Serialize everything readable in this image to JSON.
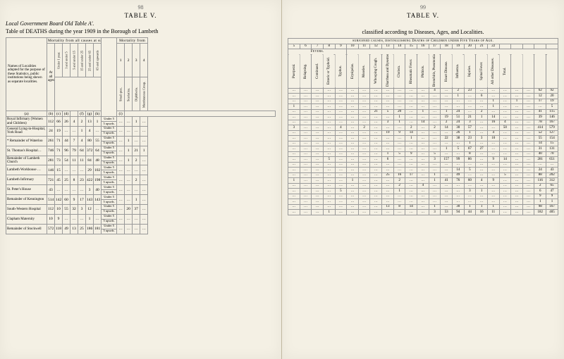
{
  "pages": {
    "left_num": "98",
    "right_num": "99"
  },
  "titles": {
    "table_label": "TABLE V.",
    "subtitle": "Local Government Board Old Table A'.",
    "caption_left": "Table of DEATHS during the year 1909 in the Borough of Lambeth",
    "caption_right": "classified according to Diseases, Ages, and Localities."
  },
  "left": {
    "group_heading_mortality": "Mortality from all causes at subjoined Ages.",
    "group_heading_mortfrom": "Mortality from",
    "names_heading": "Names of Localities adopted for the purpose of these Statistics, public institutions being shewn as separate localities.",
    "col_at_all": "At all ages",
    "age_cols": [
      "Under 1 year.",
      "1 and under 5",
      "5 and under 15",
      "15 and under 25",
      "25 and under 65",
      "65 and upwards"
    ],
    "mort_cols": [
      "Small-pox.",
      "Scarlatina.",
      "Diphtheria.",
      "Membranous Croup."
    ],
    "mort_nums": [
      "1",
      "2",
      "3",
      "4"
    ],
    "col_letters": [
      "(a)",
      "(b)",
      "(c)",
      "(d)",
      "",
      "(f)",
      "(g)",
      "(h)",
      "(i)"
    ],
    "rows": [
      {
        "label": "Royal Infirmary (Women and Children)",
        "atall": "112",
        "ages": [
          "66",
          "26",
          "4",
          "2",
          "13",
          "1"
        ],
        "u5": [
          "Under 5",
          "5 upwds."
        ],
        "m": [
          "…",
          "…",
          "1",
          "…"
        ]
      },
      {
        "label": "General Lying-in-Hospital, York Road",
        "atall": "24",
        "ages": [
          "19",
          "…",
          "…",
          "1",
          "4",
          "…"
        ],
        "u5": [
          "Under 5",
          "5 upwds."
        ],
        "m": [
          "…",
          "…",
          "…",
          "…"
        ]
      },
      {
        "label": "* Remainder of Waterloo",
        "atall": "261",
        "ages": [
          "71",
          "44",
          "7",
          "4",
          "80",
          "55"
        ],
        "u5": [
          "Under 5",
          "5 upwds."
        ],
        "m": [
          "…",
          "1",
          "…",
          "…"
        ]
      },
      {
        "label": "St. Thomas's Hospital…",
        "atall": "746",
        "ages": [
          "71",
          "96",
          "79",
          "64",
          "372",
          "64"
        ],
        "u5": [
          "Under 5",
          "5 upwds."
        ],
        "m": [
          "…",
          "1",
          "21",
          "1"
        ]
      },
      {
        "label": "Remainder of Lambeth Church",
        "atall": "281",
        "ages": [
          "73",
          "54",
          "11",
          "11",
          "84",
          "48"
        ],
        "u5": [
          "Under 5",
          "5 upwds."
        ],
        "m": [
          "…",
          "1",
          "2",
          "…"
        ]
      },
      {
        "label": "Lambeth Workhouse …",
        "atall": "146",
        "ages": [
          "15",
          "…",
          "…",
          "…",
          "29",
          "102"
        ],
        "u5": [
          "Under 5",
          "5 upwds."
        ],
        "m": [
          "…",
          "…",
          "…",
          "…"
        ]
      },
      {
        "label": "Lambeth Infirmary",
        "atall": "721",
        "ages": [
          "45",
          "25",
          "8",
          "23",
          "422",
          "198"
        ],
        "u5": [
          "Under 5",
          "5 upwds."
        ],
        "m": [
          "…",
          "…",
          "2",
          "…"
        ]
      },
      {
        "label": "St. Peter's House",
        "atall": "43",
        "ages": [
          "…",
          "…",
          "…",
          "…",
          "3",
          "40"
        ],
        "u5": [
          "Under 5",
          "5 upwds."
        ],
        "m": [
          "…",
          "…",
          "…",
          "…"
        ]
      },
      {
        "label": "Remainder of Kennington",
        "atall": "514",
        "ages": [
          "142",
          "60",
          "9",
          "17",
          "143",
          "143"
        ],
        "u5": [
          "Under 5",
          "5 upwds."
        ],
        "m": [
          "…",
          "…",
          "1",
          "…"
        ]
      },
      {
        "label": "South-Western Hospital",
        "atall": "112",
        "ages": [
          "10",
          "55",
          "32",
          "3",
          "12",
          "…"
        ],
        "u5": [
          "Under 5",
          "5 upwds."
        ],
        "m": [
          "…",
          "20",
          "37",
          "…"
        ]
      },
      {
        "label": "Clapham Maternity",
        "atall": "10",
        "ages": [
          "9",
          "…",
          "…",
          "…",
          "1",
          "…"
        ],
        "u5": [
          "Under 5",
          "5 upwds."
        ],
        "m": [
          "…",
          "…",
          "…",
          "…"
        ]
      },
      {
        "label": "Remainder of Stockwell",
        "atall": "572",
        "ages": [
          "118",
          "49",
          "13",
          "25",
          "186",
          "181"
        ],
        "u5": [
          "Under 5",
          "5 upwds."
        ],
        "m": [
          "…",
          "…",
          "…",
          "…"
        ]
      }
    ]
  },
  "right": {
    "group_heading": "subjoined causes, distinguishing Deaths of Children under Five Years of Age.",
    "fevers_heading": "Fevers.",
    "col_nums": [
      "5",
      "6",
      "7",
      "8",
      "9",
      "10",
      "11",
      "12",
      "13",
      "14",
      "15",
      "16",
      "17",
      "18",
      "19",
      "20",
      "21",
      "22"
    ],
    "disease_cols": [
      "Puerperal.",
      "Relapsing.",
      "Continued.",
      "Enteric or Typhoid.",
      "Typhus.",
      "Erysipelas.",
      "Measles.",
      "Whooping Cough.",
      "Diarrhœa and Dysentery.",
      "Cholera.",
      "Rheumatic Fever.",
      "Phthisis.",
      "Bronchitis, Pneumonia, Pleurisy.",
      "Heart Disease.",
      "Influenza.",
      "Injuries.",
      "Spinal Fever.",
      "All other Diseases.",
      "Total."
    ],
    "rows": [
      {
        "v": [
          "…",
          "…",
          "…",
          "…",
          "…",
          "…",
          "…",
          "…",
          "…",
          "…",
          "…",
          "…",
          "4",
          "…",
          "2",
          "23",
          "…",
          "…",
          "…",
          "…",
          "…",
          "62",
          "92"
        ]
      },
      {
        "v": [
          "…",
          "…",
          "…",
          "…",
          "…",
          "…",
          "…",
          "…",
          "…",
          "…",
          "…",
          "…",
          "…",
          "…",
          "1",
          "…",
          "6",
          "…",
          "…",
          "…",
          "…",
          "12",
          "20"
        ]
      },
      {
        "v": [
          "…",
          "…",
          "…",
          "…",
          "…",
          "…",
          "…",
          "…",
          "…",
          "…",
          "…",
          "…",
          "…",
          "…",
          "…",
          "…",
          "…",
          "1",
          "…",
          "1",
          "…",
          "17",
          "19"
        ]
      },
      {
        "v": [
          "1",
          "…",
          "…",
          "…",
          "…",
          "…",
          "…",
          "…",
          "…",
          "…",
          "…",
          "…",
          "…",
          "…",
          "…",
          "…",
          "…",
          "1",
          "…",
          "…",
          "…",
          "…",
          "5"
        ]
      },
      {
        "v": [
          "…",
          "…",
          "…",
          "…",
          "…",
          "…",
          "…",
          "21",
          "5",
          "20",
          "…",
          "1",
          "…",
          "1",
          "24",
          "…",
          "2",
          "…",
          "…",
          "…",
          "…",
          "41",
          "115"
        ]
      },
      {
        "v": [
          "…",
          "…",
          "…",
          "…",
          "…",
          "…",
          "…",
          "…",
          "…",
          "1",
          "…",
          "…",
          "…",
          "19",
          "51",
          "21",
          "1",
          "14",
          "…",
          "…",
          "…",
          "39",
          "146"
        ]
      },
      {
        "v": [
          "…",
          "…",
          "…",
          "…",
          "…",
          "…",
          "…",
          "…",
          "3",
          "1",
          "…",
          "14",
          "…",
          "2",
          "24",
          "3",
          "…",
          "16",
          "4",
          "…",
          "…",
          "78",
          "167"
        ]
      },
      {
        "v": [
          "3",
          "…",
          "…",
          "…",
          "4",
          "…",
          "2",
          "…",
          "…",
          "…",
          "2",
          "…",
          "2",
          "14",
          "30",
          "57",
          "…",
          "…",
          "50",
          "…",
          "…",
          "414",
          "579"
        ]
      },
      {
        "v": [
          "…",
          "…",
          "…",
          "…",
          "…",
          "…",
          "…",
          "…",
          "19",
          "9",
          "14",
          "…",
          "…",
          "…",
          "26",
          "1",
          "…",
          "4",
          "…",
          "…",
          "…",
          "52",
          "127"
        ]
      },
      {
        "v": [
          "…",
          "…",
          "…",
          "…",
          "…",
          "…",
          "…",
          "…",
          "…",
          "…",
          "1",
          "…",
          "…",
          "22",
          "38",
          "23",
          "3",
          "10",
          "…",
          "…",
          "…",
          "55",
          "154"
        ]
      },
      {
        "v": [
          "…",
          "…",
          "…",
          "…",
          "…",
          "…",
          "…",
          "…",
          "…",
          "…",
          "…",
          "…",
          "…",
          "…",
          "…",
          "1",
          "…",
          "…",
          "…",
          "…",
          "…",
          "14",
          "15"
        ]
      },
      {
        "v": [
          "…",
          "…",
          "…",
          "…",
          "…",
          "…",
          "…",
          "…",
          "…",
          "…",
          "…",
          "…",
          "…",
          "1",
          "5",
          "67",
          "27",
          "…",
          "…",
          "…",
          "…",
          "31",
          "131"
        ]
      },
      {
        "v": [
          "…",
          "…",
          "…",
          "…",
          "…",
          "…",
          "…",
          "…",
          "1",
          "5",
          "9",
          "…",
          "5",
          "…",
          "…",
          "8",
          "…",
          "…",
          "…",
          "…",
          "…",
          "40",
          "70"
        ]
      },
      {
        "v": [
          "…",
          "…",
          "…",
          "5",
          "…",
          "…",
          "…",
          "…",
          "6",
          "…",
          "…",
          "…",
          "3",
          "157",
          "99",
          "86",
          "…",
          "9",
          "14",
          "…",
          "…",
          "281",
          "651"
        ]
      },
      {
        "v": [
          "…",
          "…",
          "…",
          "…",
          "…",
          "…",
          "…",
          "…",
          "…",
          "…",
          "…",
          "…",
          "…",
          "…",
          "…",
          "…",
          "…",
          "…",
          "…",
          "…",
          "…",
          "…",
          "…"
        ]
      },
      {
        "v": [
          "…",
          "…",
          "…",
          "…",
          "…",
          "…",
          "…",
          "…",
          "…",
          "…",
          "…",
          "…",
          "…",
          "…",
          "14",
          "5",
          "…",
          "…",
          "…",
          "…",
          "…",
          "24",
          "43"
        ]
      },
      {
        "v": [
          "…",
          "…",
          "…",
          "…",
          "…",
          "…",
          "…",
          "…",
          "25",
          "16",
          "17",
          "…",
          "1",
          "…",
          "49",
          "…",
          "…",
          "…",
          "5",
          "…",
          "…",
          "88",
          "202"
        ]
      },
      {
        "v": [
          "1",
          "…",
          "…",
          "…",
          "…",
          "1",
          "…",
          "…",
          "…",
          "2",
          "…",
          "…",
          "1",
          "41",
          "76",
          "60",
          "4",
          "9",
          "…",
          "…",
          "…",
          "116",
          "312"
        ]
      },
      {
        "v": [
          "…",
          "…",
          "…",
          "…",
          "…",
          "…",
          "…",
          "…",
          "…",
          "2",
          "…",
          "4",
          "…",
          "…",
          "…",
          "…",
          "…",
          "…",
          "…",
          "…",
          "…",
          "2",
          "65"
        ]
      },
      {
        "v": [
          "…",
          "…",
          "…",
          "…",
          "5",
          "…",
          "…",
          "…",
          "…",
          "1",
          "…",
          "…",
          "…",
          "…",
          "…",
          "3",
          "1",
          "…",
          "…",
          "…",
          "…",
          "6",
          "47"
        ]
      },
      {
        "v": [
          "…",
          "…",
          "…",
          "…",
          "…",
          "…",
          "…",
          "…",
          "…",
          "…",
          "…",
          "…",
          "…",
          "…",
          "…",
          "…",
          "…",
          "…",
          "…",
          "…",
          "…",
          "9",
          "9"
        ]
      },
      {
        "v": [
          "…",
          "…",
          "…",
          "…",
          "…",
          "…",
          "…",
          "…",
          "…",
          "…",
          "…",
          "…",
          "…",
          "…",
          "…",
          "…",
          "…",
          "…",
          "…",
          "…",
          "…",
          "1",
          "1"
        ]
      },
      {
        "v": [
          "…",
          "…",
          "…",
          "…",
          "…",
          "…",
          "…",
          "…",
          "13",
          "8",
          "14",
          "…",
          "1",
          "…",
          "30",
          "1",
          "1",
          "1",
          "…",
          "…",
          "…",
          "98",
          "167"
        ]
      },
      {
        "v": [
          "…",
          "…",
          "…",
          "1",
          "…",
          "…",
          "…",
          "…",
          "…",
          "…",
          "…",
          "…",
          "3",
          "53",
          "94",
          "44",
          "16",
          "11",
          "…",
          "…",
          "…",
          "182",
          "405"
        ]
      }
    ]
  }
}
